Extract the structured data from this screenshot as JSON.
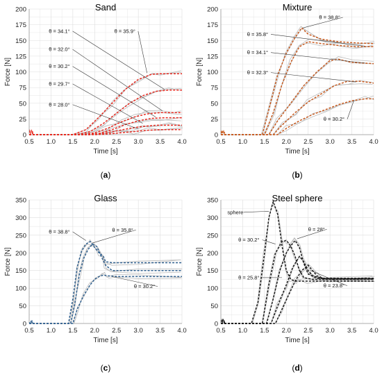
{
  "panels": [
    {
      "caption": "a",
      "chart_data": {
        "type": "line",
        "title": "Sand",
        "xlabel": "Time [s]",
        "ylabel": "Force [N]",
        "xlim": [
          0.5,
          4.0
        ],
        "ylim": [
          0,
          200
        ],
        "xticks": [
          "0.5",
          "1.0",
          "1.5",
          "2.0",
          "2.5",
          "3.0",
          "3.5",
          "4.0"
        ],
        "yticks": [
          "0",
          "25",
          "50",
          "75",
          "100",
          "125",
          "150",
          "175",
          "200"
        ],
        "grid": true,
        "series_color": "#e8281e",
        "raw_color": "#b9b9b9",
        "series": [
          {
            "name": "θ = 35.9°",
            "x": [
              0.5,
              1.5,
              1.8,
              2.1,
              2.4,
              2.7,
              3.0,
              3.3,
              3.5,
              4.0
            ],
            "y": [
              0,
              0,
              8,
              28,
              50,
              72,
              88,
              96,
              97,
              97
            ]
          },
          {
            "name": "θ = 34.1°",
            "x": [
              0.5,
              1.6,
              1.9,
              2.2,
              2.5,
              2.8,
              3.1,
              3.4,
              3.7,
              4.0
            ],
            "y": [
              0,
              0,
              5,
              18,
              34,
              50,
              62,
              69,
              71,
              71
            ]
          },
          {
            "name": "θ = 32.0°",
            "x": [
              0.5,
              1.7,
              2.0,
              2.3,
              2.6,
              2.9,
              3.2,
              3.5,
              3.8,
              4.0
            ],
            "y": [
              0,
              0,
              3,
              10,
              20,
              28,
              33,
              35,
              35,
              35
            ]
          },
          {
            "name": "θ = 30.2°",
            "x": [
              0.5,
              1.8,
              2.1,
              2.4,
              2.7,
              3.0,
              3.3,
              3.6,
              4.0
            ],
            "y": [
              0,
              0,
              2,
              8,
              16,
              22,
              26,
              27,
              27
            ]
          },
          {
            "name": "θ = 29.7°",
            "x": [
              0.5,
              1.9,
              2.2,
              2.5,
              2.8,
              3.1,
              3.4,
              3.7,
              4.0
            ],
            "y": [
              0,
              0,
              2,
              6,
              10,
              13,
              15,
              15,
              15
            ]
          },
          {
            "name": "θ = 28.0°",
            "x": [
              0.5,
              2.0,
              2.3,
              2.6,
              2.9,
              3.2,
              3.5,
              4.0
            ],
            "y": [
              0,
              0,
              1,
              3,
              5,
              7,
              8,
              8
            ]
          }
        ]
      },
      "annotations": [
        {
          "label": "θ = 35.9°",
          "pos": [
            2.45,
            162
          ],
          "to": [
            3.2,
            98
          ]
        },
        {
          "label": "θ = 34.1°",
          "pos": [
            0.95,
            162
          ],
          "to": [
            3.6,
            72
          ]
        },
        {
          "label": "θ = 32.0°",
          "pos": [
            0.95,
            133
          ],
          "to": [
            3.55,
            38
          ]
        },
        {
          "label": "θ = 30.2°",
          "pos": [
            0.95,
            106
          ],
          "to": [
            3.4,
            28
          ]
        },
        {
          "label": "θ = 29.7°",
          "pos": [
            0.95,
            78
          ],
          "to": [
            3.1,
            18
          ]
        },
        {
          "label": "θ = 28.0°",
          "pos": [
            0.95,
            45
          ],
          "to": [
            3.0,
            9
          ]
        }
      ]
    },
    {
      "caption": "b",
      "chart_data": {
        "type": "line",
        "title": "Mixture",
        "xlabel": "Time [s]",
        "ylabel": "Force [N]",
        "xlim": [
          0.5,
          4.0
        ],
        "ylim": [
          0,
          200
        ],
        "xticks": [
          "0.5",
          "1.0",
          "1.5",
          "2.0",
          "2.5",
          "3.0",
          "3.5",
          "4.0"
        ],
        "yticks": [
          "0",
          "25",
          "50",
          "75",
          "100",
          "125",
          "150",
          "175",
          "200"
        ],
        "grid": true,
        "series_color": "#c85a1e",
        "raw_color": "#b9b9b9",
        "series": [
          {
            "name": "θ = 38.8°",
            "x": [
              0.5,
              1.45,
              1.6,
              1.8,
              2.0,
              2.2,
              2.35,
              2.5,
              2.8,
              3.2,
              3.6,
              4.0
            ],
            "y": [
              0,
              0,
              40,
              95,
              130,
              155,
              170,
              160,
              152,
              148,
              146,
              145
            ]
          },
          {
            "name": "θ = 35.8°",
            "x": [
              0.5,
              1.5,
              1.7,
              1.9,
              2.1,
              2.3,
              2.5,
              2.8,
              3.2,
              3.6,
              4.0
            ],
            "y": [
              0,
              0,
              35,
              80,
              115,
              140,
              148,
              145,
              142,
              140,
              140
            ]
          },
          {
            "name": "θ = 34.1°",
            "x": [
              0.5,
              1.6,
              1.8,
              2.1,
              2.4,
              2.7,
              3.0,
              3.2,
              3.5,
              4.0
            ],
            "y": [
              0,
              0,
              22,
              50,
              78,
              100,
              118,
              120,
              115,
              113
            ]
          },
          {
            "name": "θ = 32.3°",
            "x": [
              0.5,
              1.7,
              1.9,
              2.2,
              2.5,
              2.8,
              3.1,
              3.4,
              3.7,
              4.0
            ],
            "y": [
              0,
              0,
              15,
              35,
              52,
              65,
              78,
              85,
              85,
              82
            ]
          },
          {
            "name": "θ = 30.2°",
            "x": [
              0.5,
              1.8,
              2.0,
              2.3,
              2.6,
              2.9,
              3.2,
              3.5,
              3.8,
              4.0
            ],
            "y": [
              0,
              0,
              10,
              22,
              32,
              40,
              48,
              54,
              57,
              57
            ]
          }
        ]
      },
      "annotations": [
        {
          "label": "θ = 38.8°",
          "pos": [
            2.75,
            184
          ],
          "to": [
            2.38,
            170
          ]
        },
        {
          "label": "θ = 35.8°",
          "pos": [
            1.1,
            157
          ],
          "to": [
            3.8,
            141
          ]
        },
        {
          "label": "θ = 34.1°",
          "pos": [
            1.1,
            128
          ],
          "to": [
            3.8,
            114
          ]
        },
        {
          "label": "θ = 32.3°",
          "pos": [
            1.1,
            96
          ],
          "to": [
            3.6,
            84
          ]
        },
        {
          "label": "θ = 30.2°",
          "pos": [
            2.85,
            22
          ],
          "to": [
            3.55,
            55
          ]
        }
      ]
    },
    {
      "caption": "c",
      "chart_data": {
        "type": "line",
        "title": "Glass",
        "xlabel": "Time [s]",
        "ylabel": "Force [N]",
        "xlim": [
          0.5,
          4.0
        ],
        "ylim": [
          0,
          350
        ],
        "xticks": [
          "0.5",
          "1.0",
          "1.5",
          "2.0",
          "2.5",
          "3.0",
          "3.5",
          "4.0"
        ],
        "yticks": [
          "0",
          "50",
          "100",
          "150",
          "200",
          "250",
          "300",
          "350"
        ],
        "grid": true,
        "series_color": "#2e5f8e",
        "raw_color": "#b9b9b9",
        "series": [
          {
            "name": "θ = 38.8°",
            "x": [
              0.5,
              1.4,
              1.5,
              1.6,
              1.7,
              1.8,
              1.9,
              2.0,
              2.1,
              2.2,
              2.25,
              2.4,
              3.0,
              4.0
            ],
            "y": [
              0,
              0,
              70,
              160,
              205,
              225,
              232,
              215,
              200,
              190,
              175,
              172,
              172,
              172
            ]
          },
          {
            "name": "θ = 35.8°",
            "x": [
              0.5,
              1.45,
              1.55,
              1.65,
              1.75,
              1.85,
              1.95,
              2.05,
              2.15,
              2.25,
              2.4,
              3.0,
              4.0
            ],
            "y": [
              0,
              0,
              60,
              140,
              185,
              210,
              225,
              218,
              190,
              165,
              150,
              150,
              150
            ]
          },
          {
            "name": "θ = 30.2°",
            "x": [
              0.5,
              1.5,
              1.6,
              1.75,
              1.9,
              2.0,
              2.1,
              2.2,
              2.3,
              2.5,
              3.0,
              4.0
            ],
            "y": [
              0,
              0,
              40,
              80,
              110,
              125,
              133,
              137,
              135,
              133,
              133,
              133
            ]
          }
        ]
      },
      "annotations": [
        {
          "label": "θ = 38.8°",
          "pos": [
            0.95,
            255
          ],
          "to": [
            1.8,
            235
          ]
        },
        {
          "label": "θ = 35.8°",
          "pos": [
            2.4,
            260
          ],
          "to": [
            1.95,
            228
          ]
        },
        {
          "label": "θ = 30.2°",
          "pos": [
            2.9,
            100
          ],
          "to": [
            2.4,
            133
          ]
        }
      ]
    },
    {
      "caption": "d",
      "chart_data": {
        "type": "line",
        "title": "Steel sphere",
        "xlabel": "Time [s]",
        "ylabel": "Force [N]",
        "xlim": [
          0.5,
          4.0
        ],
        "ylim": [
          0,
          350
        ],
        "xticks": [
          "0.5",
          "1.0",
          "1.5",
          "2.0",
          "2.5",
          "3.0",
          "3.5",
          "4.0"
        ],
        "yticks": [
          "0",
          "50",
          "100",
          "150",
          "200",
          "250",
          "300",
          "350"
        ],
        "grid": true,
        "series_color": "#1a1a1a",
        "raw_color": "#b9b9b9",
        "series": [
          {
            "name": "sphere",
            "x": [
              0.5,
              1.2,
              1.35,
              1.5,
              1.6,
              1.7,
              1.8,
              1.9,
              2.0,
              2.1,
              2.2,
              2.3,
              2.5,
              3.0,
              4.0
            ],
            "y": [
              0,
              0,
              60,
              200,
              300,
              345,
              310,
              220,
              150,
              125,
              120,
              120,
              120,
              120,
              120
            ]
          },
          {
            "name": "θ = 30.2°",
            "x": [
              0.5,
              1.45,
              1.6,
              1.75,
              1.9,
              2.0,
              2.1,
              2.2,
              2.3,
              2.4,
              2.6,
              3.0,
              4.0
            ],
            "y": [
              0,
              0,
              110,
              200,
              232,
              235,
              220,
              190,
              150,
              130,
              125,
              125,
              125
            ]
          },
          {
            "name": "θ = 28°",
            "x": [
              0.5,
              1.55,
              1.7,
              1.85,
              2.0,
              2.1,
              2.2,
              2.3,
              2.4,
              2.5,
              2.7,
              3.0,
              4.0
            ],
            "y": [
              0,
              0,
              70,
              150,
              200,
              220,
              235,
              215,
              170,
              140,
              128,
              126,
              126
            ]
          },
          {
            "name": "θ = 25.8°",
            "x": [
              0.5,
              1.65,
              1.8,
              2.0,
              2.15,
              2.3,
              2.4,
              2.5,
              2.6,
              2.8,
              3.0,
              4.0
            ],
            "y": [
              0,
              0,
              50,
              110,
              160,
              190,
              175,
              150,
              135,
              128,
              127,
              127
            ]
          },
          {
            "name": "θ = 23.8°",
            "x": [
              0.5,
              1.75,
              1.9,
              2.05,
              2.2,
              2.35,
              2.5,
              2.6,
              2.7,
              2.85,
              3.0,
              4.0
            ],
            "y": [
              0,
              0,
              40,
              80,
              120,
              150,
              165,
              150,
              135,
              128,
              128,
              128
            ]
          }
        ]
      },
      "annotations": [
        {
          "label": "sphere",
          "pos": [
            0.65,
            310
          ],
          "to": [
            1.6,
            318
          ]
        },
        {
          "label": "θ = 30.2°",
          "pos": [
            0.9,
            232
          ],
          "to": [
            1.75,
            225
          ]
        },
        {
          "label": "θ = 28°",
          "pos": [
            2.5,
            262
          ],
          "to": [
            2.25,
            240
          ]
        },
        {
          "label": "θ = 25.8°",
          "pos": [
            0.9,
            125
          ],
          "to": [
            1.9,
            130
          ]
        },
        {
          "label": "θ = 23.8°",
          "pos": [
            2.85,
            102
          ],
          "to": [
            2.55,
            150
          ]
        }
      ]
    }
  ]
}
